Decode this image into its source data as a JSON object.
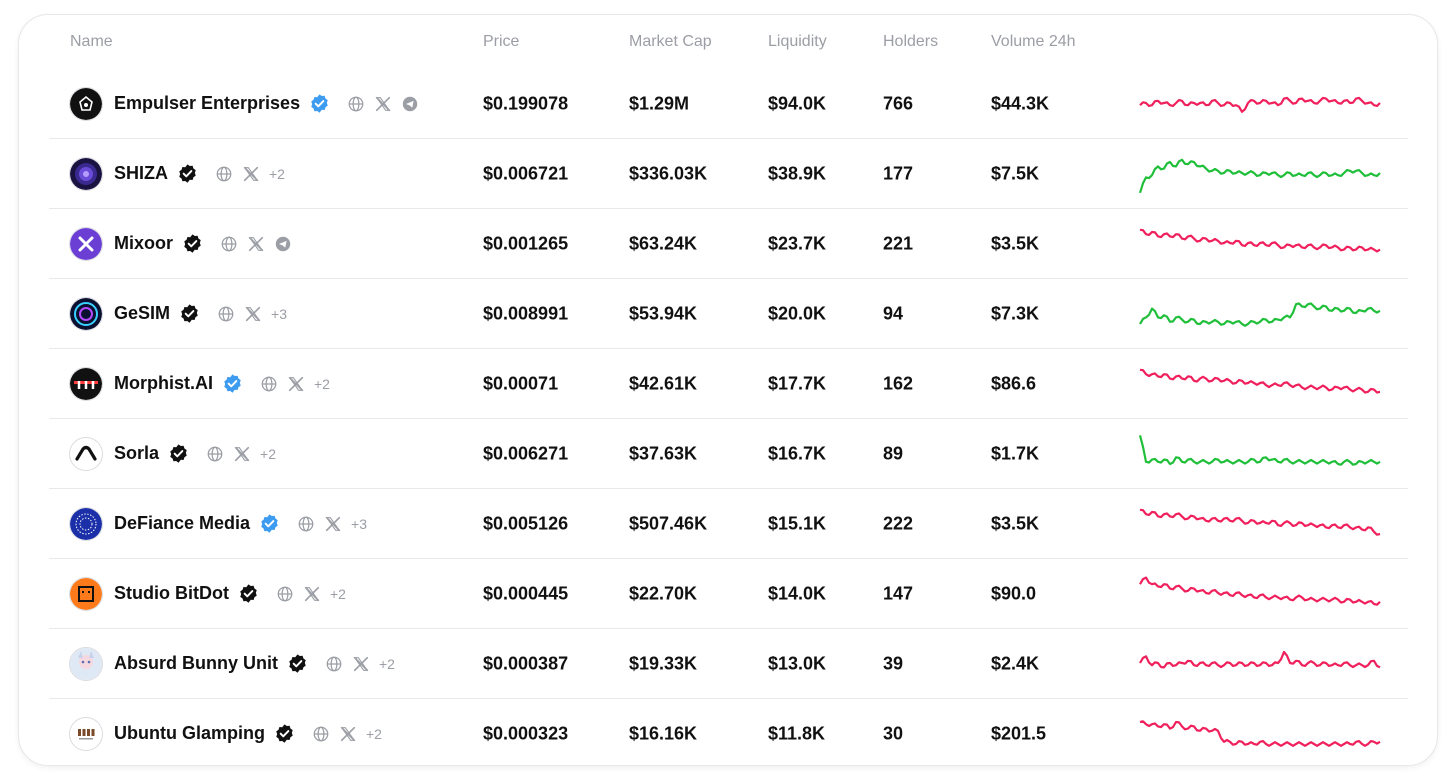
{
  "columns": {
    "name": "Name",
    "price": "Price",
    "market_cap": "Market Cap",
    "liquidity": "Liquidity",
    "holders": "Holders",
    "volume": "Volume 24h"
  },
  "colors": {
    "down": "#f0205c",
    "up": "#1fbf3a",
    "verified_blue": "#3d9bf0",
    "verified_black": "#111111",
    "muted": "#9b9ea5"
  },
  "rows": [
    {
      "name": "Empulser Enterprises",
      "verified": "blue",
      "links": [
        "globe-icon",
        "x-icon",
        "telegram-icon"
      ],
      "more": "",
      "price": "$0.199078",
      "market_cap": "$1.29M",
      "liquidity": "$94.0K",
      "holders": "766",
      "volume": "$44.3K",
      "trend": "down",
      "spark": [
        0.55,
        0.5,
        0.55,
        0.45,
        0.5,
        0.55,
        0.5,
        0.45,
        0.55,
        0.5,
        0.5,
        0.55,
        0.45,
        0.5,
        0.55,
        0.5,
        0.55,
        0.7,
        0.5,
        0.45,
        0.5,
        0.45,
        0.5,
        0.55,
        0.4,
        0.45,
        0.5,
        0.4,
        0.45,
        0.5,
        0.45,
        0.4,
        0.45,
        0.5,
        0.45,
        0.5,
        0.4,
        0.45,
        0.5,
        0.55,
        0.5
      ]
    },
    {
      "name": "SHIZA",
      "verified": "black",
      "links": [
        "globe-icon",
        "x-icon"
      ],
      "more": "+2",
      "price": "$0.006721",
      "market_cap": "$336.03K",
      "liquidity": "$38.9K",
      "holders": "177",
      "volume": "$7.5K",
      "trend": "up",
      "spark": [
        0.95,
        0.6,
        0.55,
        0.35,
        0.4,
        0.25,
        0.35,
        0.2,
        0.3,
        0.25,
        0.35,
        0.4,
        0.45,
        0.45,
        0.5,
        0.45,
        0.5,
        0.5,
        0.5,
        0.5,
        0.55,
        0.5,
        0.5,
        0.55,
        0.55,
        0.5,
        0.55,
        0.55,
        0.5,
        0.55,
        0.55,
        0.5,
        0.55,
        0.55,
        0.5,
        0.45,
        0.45,
        0.5,
        0.55,
        0.55,
        0.5
      ]
    },
    {
      "name": "Mixoor",
      "verified": "black",
      "links": [
        "globe-icon",
        "x-icon",
        "telegram-icon"
      ],
      "more": "",
      "price": "$0.001265",
      "market_cap": "$63.24K",
      "liquidity": "$23.7K",
      "holders": "221",
      "volume": "$3.5K",
      "trend": "down",
      "spark": [
        0.2,
        0.3,
        0.25,
        0.35,
        0.3,
        0.35,
        0.3,
        0.4,
        0.35,
        0.4,
        0.45,
        0.4,
        0.45,
        0.45,
        0.5,
        0.5,
        0.45,
        0.55,
        0.5,
        0.55,
        0.5,
        0.55,
        0.5,
        0.55,
        0.6,
        0.55,
        0.55,
        0.6,
        0.55,
        0.6,
        0.6,
        0.55,
        0.6,
        0.6,
        0.65,
        0.6,
        0.65,
        0.6,
        0.65,
        0.65,
        0.65
      ]
    },
    {
      "name": "GeSIM",
      "verified": "black",
      "links": [
        "globe-icon",
        "x-icon"
      ],
      "more": "+3",
      "price": "$0.008991",
      "market_cap": "$53.94K",
      "liquidity": "$20.0K",
      "holders": "94",
      "volume": "$7.3K",
      "trend": "up",
      "spark": [
        0.75,
        0.6,
        0.4,
        0.6,
        0.55,
        0.7,
        0.6,
        0.65,
        0.7,
        0.65,
        0.75,
        0.7,
        0.7,
        0.7,
        0.75,
        0.7,
        0.7,
        0.75,
        0.75,
        0.7,
        0.7,
        0.65,
        0.7,
        0.65,
        0.6,
        0.6,
        0.3,
        0.35,
        0.3,
        0.35,
        0.4,
        0.35,
        0.45,
        0.4,
        0.45,
        0.4,
        0.5,
        0.45,
        0.4,
        0.45,
        0.45
      ]
    },
    {
      "name": "Morphist.AI",
      "verified": "blue",
      "links": [
        "globe-icon",
        "x-icon"
      ],
      "more": "+2",
      "price": "$0.00071",
      "market_cap": "$42.61K",
      "liquidity": "$17.7K",
      "holders": "162",
      "volume": "$86.6",
      "trend": "down",
      "spark": [
        0.2,
        0.3,
        0.3,
        0.35,
        0.3,
        0.4,
        0.35,
        0.4,
        0.35,
        0.45,
        0.4,
        0.4,
        0.45,
        0.4,
        0.45,
        0.45,
        0.5,
        0.45,
        0.5,
        0.5,
        0.5,
        0.55,
        0.55,
        0.55,
        0.5,
        0.55,
        0.55,
        0.6,
        0.6,
        0.6,
        0.6,
        0.6,
        0.65,
        0.6,
        0.6,
        0.65,
        0.65,
        0.65,
        0.7,
        0.65,
        0.7
      ]
    },
    {
      "name": "Sorla",
      "verified": "black",
      "links": [
        "globe-icon",
        "x-icon"
      ],
      "more": "+2",
      "price": "$0.006271",
      "market_cap": "$37.63K",
      "liquidity": "$16.7K",
      "holders": "89",
      "volume": "$1.7K",
      "trend": "up",
      "spark": [
        0.1,
        0.7,
        0.65,
        0.7,
        0.65,
        0.75,
        0.6,
        0.7,
        0.65,
        0.7,
        0.7,
        0.7,
        0.7,
        0.65,
        0.7,
        0.7,
        0.7,
        0.7,
        0.7,
        0.65,
        0.7,
        0.6,
        0.65,
        0.7,
        0.65,
        0.7,
        0.7,
        0.7,
        0.7,
        0.7,
        0.7,
        0.7,
        0.7,
        0.75,
        0.7,
        0.7,
        0.75,
        0.7,
        0.7,
        0.7,
        0.7
      ]
    },
    {
      "name": "DeFiance Media",
      "verified": "blue",
      "links": [
        "globe-icon",
        "x-icon"
      ],
      "more": "+3",
      "price": "$0.005126",
      "market_cap": "$507.46K",
      "liquidity": "$15.1K",
      "holders": "222",
      "volume": "$3.5K",
      "trend": "down",
      "spark": [
        0.2,
        0.3,
        0.25,
        0.35,
        0.3,
        0.35,
        0.3,
        0.35,
        0.4,
        0.35,
        0.4,
        0.45,
        0.4,
        0.45,
        0.4,
        0.45,
        0.4,
        0.45,
        0.5,
        0.45,
        0.5,
        0.5,
        0.45,
        0.55,
        0.5,
        0.5,
        0.55,
        0.5,
        0.55,
        0.55,
        0.55,
        0.6,
        0.55,
        0.6,
        0.55,
        0.6,
        0.6,
        0.65,
        0.6,
        0.7,
        0.75
      ]
    },
    {
      "name": "Studio BitDot",
      "verified": "black",
      "links": [
        "globe-icon",
        "x-icon"
      ],
      "more": "+2",
      "price": "$0.000445",
      "market_cap": "$22.70K",
      "liquidity": "$14.0K",
      "holders": "147",
      "volume": "$90.0",
      "trend": "down",
      "spark": [
        0.3,
        0.15,
        0.3,
        0.35,
        0.3,
        0.4,
        0.35,
        0.4,
        0.45,
        0.4,
        0.45,
        0.5,
        0.45,
        0.5,
        0.5,
        0.55,
        0.5,
        0.55,
        0.55,
        0.6,
        0.55,
        0.6,
        0.6,
        0.6,
        0.6,
        0.65,
        0.6,
        0.6,
        0.65,
        0.65,
        0.65,
        0.65,
        0.65,
        0.65,
        0.7,
        0.65,
        0.7,
        0.7,
        0.7,
        0.75,
        0.7
      ]
    },
    {
      "name": "Absurd Bunny Unit",
      "verified": "black",
      "links": [
        "globe-icon",
        "x-icon"
      ],
      "more": "+2",
      "price": "$0.000387",
      "market_cap": "$19.33K",
      "liquidity": "$13.0K",
      "holders": "39",
      "volume": "$2.4K",
      "trend": "down",
      "spark": [
        0.5,
        0.35,
        0.55,
        0.5,
        0.6,
        0.5,
        0.55,
        0.5,
        0.45,
        0.55,
        0.5,
        0.55,
        0.5,
        0.55,
        0.55,
        0.5,
        0.55,
        0.5,
        0.55,
        0.5,
        0.55,
        0.5,
        0.55,
        0.5,
        0.25,
        0.5,
        0.45,
        0.55,
        0.5,
        0.5,
        0.55,
        0.5,
        0.55,
        0.55,
        0.5,
        0.55,
        0.55,
        0.55,
        0.55,
        0.45,
        0.6
      ]
    },
    {
      "name": "Ubuntu Glamping",
      "verified": "black",
      "links": [
        "globe-icon",
        "x-icon"
      ],
      "more": "+2",
      "price": "$0.000323",
      "market_cap": "$16.16K",
      "liquidity": "$11.8K",
      "holders": "30",
      "volume": "$201.5",
      "trend": "down",
      "spark": [
        0.25,
        0.3,
        0.3,
        0.35,
        0.3,
        0.4,
        0.25,
        0.35,
        0.4,
        0.35,
        0.45,
        0.4,
        0.45,
        0.45,
        0.7,
        0.7,
        0.75,
        0.7,
        0.75,
        0.75,
        0.7,
        0.75,
        0.75,
        0.75,
        0.75,
        0.75,
        0.75,
        0.75,
        0.75,
        0.75,
        0.75,
        0.75,
        0.75,
        0.75,
        0.75,
        0.75,
        0.7,
        0.75,
        0.75,
        0.7,
        0.7
      ]
    }
  ]
}
